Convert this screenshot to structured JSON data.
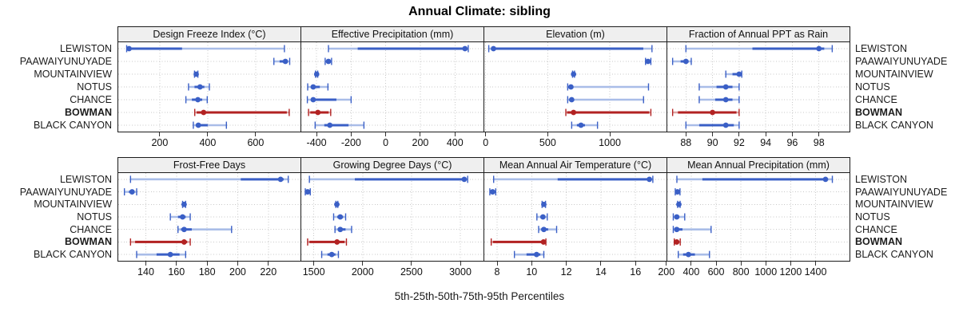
{
  "title": "Annual Climate: sibling",
  "caption": "5th-25th-50th-75th-95th Percentiles",
  "chart_data": {
    "type": "scatter",
    "subtype": "trellis-percentile-range-dotplot",
    "title": "Annual Climate: sibling",
    "xlabel": "5th-25th-50th-75th-95th Percentiles",
    "legend_position": "none",
    "grid": "dotted",
    "percentiles": [
      5,
      25,
      50,
      75,
      95
    ],
    "locations": [
      "LEWISTON",
      "PAAWAIYUNUYADE",
      "MOUNTAINVIEW",
      "NOTUS",
      "CHANCE",
      "BOWMAN",
      "BLACK CANYON"
    ],
    "highlight_location": "BOWMAN",
    "colors": {
      "series": "#3A5FC6",
      "series_light": "#A9BDE8",
      "highlight": "#B22222",
      "highlight_light": "#DDA3A3",
      "gridline": "#c8c8c8",
      "strip_bg": "#efefef",
      "border": "#1b1b1b"
    },
    "panels": [
      {
        "label": "Design Freeze Index (°C)",
        "ticks": [
          200,
          400,
          600
        ],
        "domain": [
          27,
          787
        ],
        "values": {
          "LEWISTON": [
            62,
            68,
            72,
            293,
            720
          ],
          "PAAWAIYUNUYADE": [
            676,
            700,
            724,
            734,
            742
          ],
          "MOUNTAINVIEW": [
            345,
            349,
            352,
            356,
            359
          ],
          "NOTUS": [
            320,
            345,
            368,
            386,
            407
          ],
          "CHANCE": [
            309,
            334,
            359,
            377,
            398
          ],
          "BOWMAN": [
            346,
            354,
            383,
            730,
            740
          ],
          "BLACK CANYON": [
            340,
            350,
            361,
            400,
            478
          ]
        }
      },
      {
        "label": "Effective Precipitation (mm)",
        "ticks": [
          -400,
          -200,
          0,
          200,
          400
        ],
        "domain": [
          -488,
          565
        ],
        "values": {
          "LEWISTON": [
            -331,
            -162,
            458,
            468,
            477
          ],
          "PAAWAIYUNUYADE": [
            -350,
            -340,
            -331,
            -322,
            -313
          ],
          "MOUNTAINVIEW": [
            -406,
            -402,
            -399,
            -396,
            -393
          ],
          "NOTUS": [
            -451,
            -433,
            -419,
            -381,
            -334
          ],
          "CHANCE": [
            -453,
            -432,
            -419,
            -285,
            -200
          ],
          "BOWMAN": [
            -446,
            -436,
            -392,
            -330,
            -318
          ],
          "BLACK CANYON": [
            -408,
            -355,
            -323,
            -215,
            -126
          ]
        }
      },
      {
        "label": "Elevation (m)",
        "ticks": [
          0,
          500,
          1000
        ],
        "domain": [
          -11,
          1457
        ],
        "values": {
          "LEWISTON": [
            25,
            52,
            63,
            1270,
            1340
          ],
          "PAAWAIYUNUYADE": [
            1288,
            1298,
            1308,
            1320,
            1331
          ],
          "MOUNTAINVIEW": [
            700,
            704,
            708,
            712,
            716
          ],
          "NOTUS": [
            661,
            678,
            687,
            700,
            1312
          ],
          "CHANCE": [
            661,
            680,
            693,
            705,
            1272
          ],
          "BOWMAN": [
            646,
            656,
            708,
            1318,
            1331
          ],
          "BLACK CANYON": [
            693,
            735,
            768,
            800,
            901
          ]
        }
      },
      {
        "label": "Fraction of Annual PPT as Rain",
        "ticks": [
          88,
          90,
          92,
          94,
          96,
          98
        ],
        "domain": [
          86.6,
          100.3
        ],
        "values": {
          "LEWISTON": [
            88,
            93,
            98,
            98.4,
            99
          ],
          "PAAWAIYUNUYADE": [
            87,
            87.6,
            88,
            88.2,
            88.4
          ],
          "MOUNTAINVIEW": [
            91,
            91.5,
            92,
            92.1,
            92.2
          ],
          "NOTUS": [
            89,
            90.3,
            91,
            91.5,
            92
          ],
          "CHANCE": [
            89,
            90.2,
            91,
            91.5,
            92
          ],
          "BOWMAN": [
            87,
            87.4,
            90,
            91.8,
            92
          ],
          "BLACK CANYON": [
            88,
            89,
            91,
            91.6,
            92
          ]
        }
      },
      {
        "label": "Frost-Free Days",
        "ticks": [
          140,
          160,
          180,
          200,
          220
        ],
        "domain": [
          122,
          241
        ],
        "values": {
          "LEWISTON": [
            130,
            202,
            228,
            230,
            233
          ],
          "PAAWAIYUNUYADE": [
            126,
            129,
            131,
            132,
            134
          ],
          "MOUNTAINVIEW": [
            164,
            164.5,
            165,
            165.5,
            166
          ],
          "NOTUS": [
            156,
            161,
            164,
            166,
            169
          ],
          "CHANCE": [
            161,
            163,
            165,
            170,
            196
          ],
          "BOWMAN": [
            130,
            133,
            165,
            167,
            169
          ],
          "BLACK CANYON": [
            134,
            147,
            156,
            162,
            166
          ]
        }
      },
      {
        "label": "Growing Degree Days (°C)",
        "ticks": [
          1500,
          2000,
          2500,
          3000
        ],
        "domain": [
          1372,
          3237
        ],
        "values": {
          "LEWISTON": [
            1455,
            1920,
            3040,
            3056,
            3075
          ],
          "PAAWAIYUNUYADE": [
            1413,
            1425,
            1437,
            1450,
            1464
          ],
          "MOUNTAINVIEW": [
            1726,
            1731,
            1736,
            1741,
            1746
          ],
          "NOTUS": [
            1703,
            1740,
            1771,
            1800,
            1826
          ],
          "CHANCE": [
            1717,
            1750,
            1771,
            1825,
            1887
          ],
          "BOWMAN": [
            1437,
            1455,
            1738,
            1815,
            1834
          ],
          "BLACK CANYON": [
            1581,
            1640,
            1684,
            1722,
            1752
          ]
        }
      },
      {
        "label": "Mean Annual Air Temperature (°C)",
        "ticks": [
          8,
          10,
          12,
          14,
          16
        ],
        "domain": [
          7.26,
          17.79
        ],
        "values": {
          "LEWISTON": [
            7.8,
            11.5,
            16.8,
            16.9,
            17
          ],
          "PAAWAIYUNUYADE": [
            7.58,
            7.67,
            7.74,
            7.82,
            7.92
          ],
          "MOUNTAINVIEW": [
            10.6,
            10.65,
            10.7,
            10.75,
            10.8
          ],
          "NOTUS": [
            10.3,
            10.5,
            10.65,
            10.78,
            10.9
          ],
          "CHANCE": [
            10.4,
            10.55,
            10.7,
            10.95,
            11.44
          ],
          "BOWMAN": [
            7.66,
            7.76,
            10.68,
            10.76,
            10.82
          ],
          "BLACK CANYON": [
            9,
            9.7,
            10.28,
            10.5,
            10.7
          ]
        }
      },
      {
        "label": "Mean Annual Precipitation (mm)",
        "ticks": [
          200,
          400,
          600,
          800,
          1000,
          1200,
          1400
        ],
        "domain": [
          208,
          1673
        ],
        "values": {
          "LEWISTON": [
            285,
            490,
            1480,
            1500,
            1535
          ],
          "PAAWAIYUNUYADE": [
            272,
            281,
            290,
            300,
            310
          ],
          "MOUNTAINVIEW": [
            291,
            296,
            301,
            306,
            311
          ],
          "NOTUS": [
            256,
            270,
            284,
            305,
            348
          ],
          "CHANCE": [
            256,
            270,
            284,
            330,
            560
          ],
          "BOWMAN": [
            264,
            272,
            284,
            300,
            312
          ],
          "BLACK CANYON": [
            296,
            335,
            378,
            430,
            547
          ]
        }
      }
    ]
  }
}
